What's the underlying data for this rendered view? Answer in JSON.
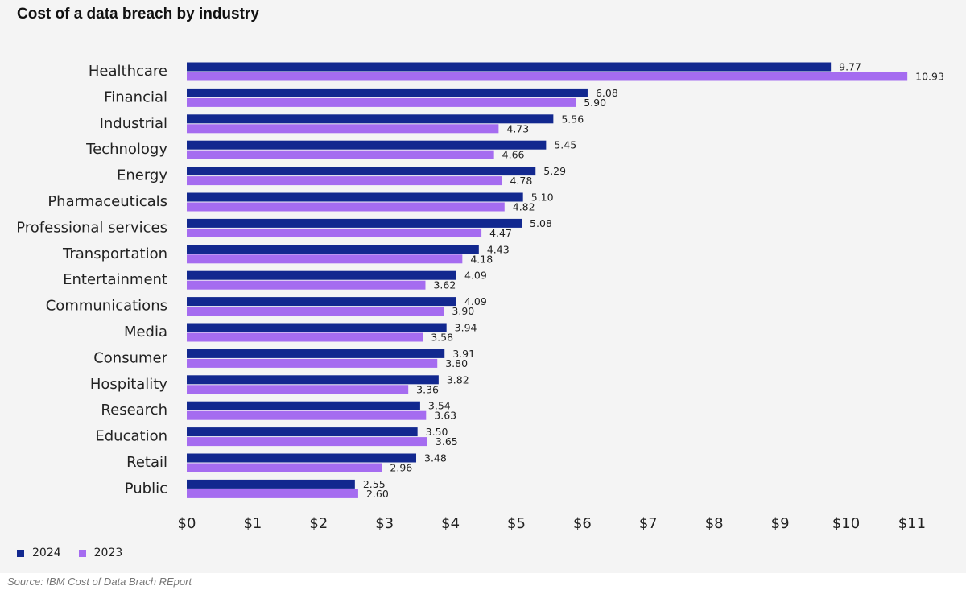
{
  "colors": {
    "series_2024": "#12288f",
    "series_2023": "#a56cf0",
    "background": "#f4f4f4"
  },
  "legend": {
    "item_2024": "2024",
    "item_2023": "2023"
  },
  "source": "Source: IBM Cost of Data Brach REport",
  "chart_data": {
    "type": "bar",
    "orientation": "horizontal",
    "title": "Cost of a data breach by industry",
    "categories": [
      "Healthcare",
      "Financial",
      "Industrial",
      "Technology",
      "Energy",
      "Pharmaceuticals",
      "Professional services",
      "Transportation",
      "Entertainment",
      "Communications",
      "Media",
      "Consumer",
      "Hospitality",
      "Research",
      "Education",
      "Retail",
      "Public"
    ],
    "series": [
      {
        "name": "2024",
        "values": [
          9.77,
          6.08,
          5.56,
          5.45,
          5.29,
          5.1,
          5.08,
          4.43,
          4.09,
          4.09,
          3.94,
          3.91,
          3.82,
          3.54,
          3.5,
          3.48,
          2.55
        ],
        "labels": [
          "9.77",
          "6.08",
          "5.56",
          "5.45",
          "5.29",
          "5.10",
          "5.08",
          "4.43",
          "4.09",
          "4.09",
          "3.94",
          "3.91",
          "3.82",
          "3.54",
          "3.50",
          "3.48",
          "2.55"
        ]
      },
      {
        "name": "2023",
        "values": [
          10.93,
          5.9,
          4.73,
          4.66,
          4.78,
          4.82,
          4.47,
          4.18,
          3.62,
          3.9,
          3.58,
          3.8,
          3.36,
          3.63,
          3.65,
          2.96,
          2.6
        ],
        "labels": [
          "10.93",
          "5.90",
          "4.73",
          "4.66",
          "4.78",
          "4.82",
          "4.47",
          "4.18",
          "3.62",
          "3.90",
          "3.58",
          "3.80",
          "3.36",
          "3.63",
          "3.65",
          "2.96",
          "2.60"
        ]
      }
    ],
    "xlim": [
      0,
      11
    ],
    "xticks": [
      "$0",
      "$1",
      "$2",
      "$3",
      "$4",
      "$5",
      "$6",
      "$7",
      "$8",
      "$9",
      "$10",
      "$11"
    ],
    "xlabel": "",
    "ylabel": "",
    "grid": false,
    "legend_position": "bottom-left"
  }
}
